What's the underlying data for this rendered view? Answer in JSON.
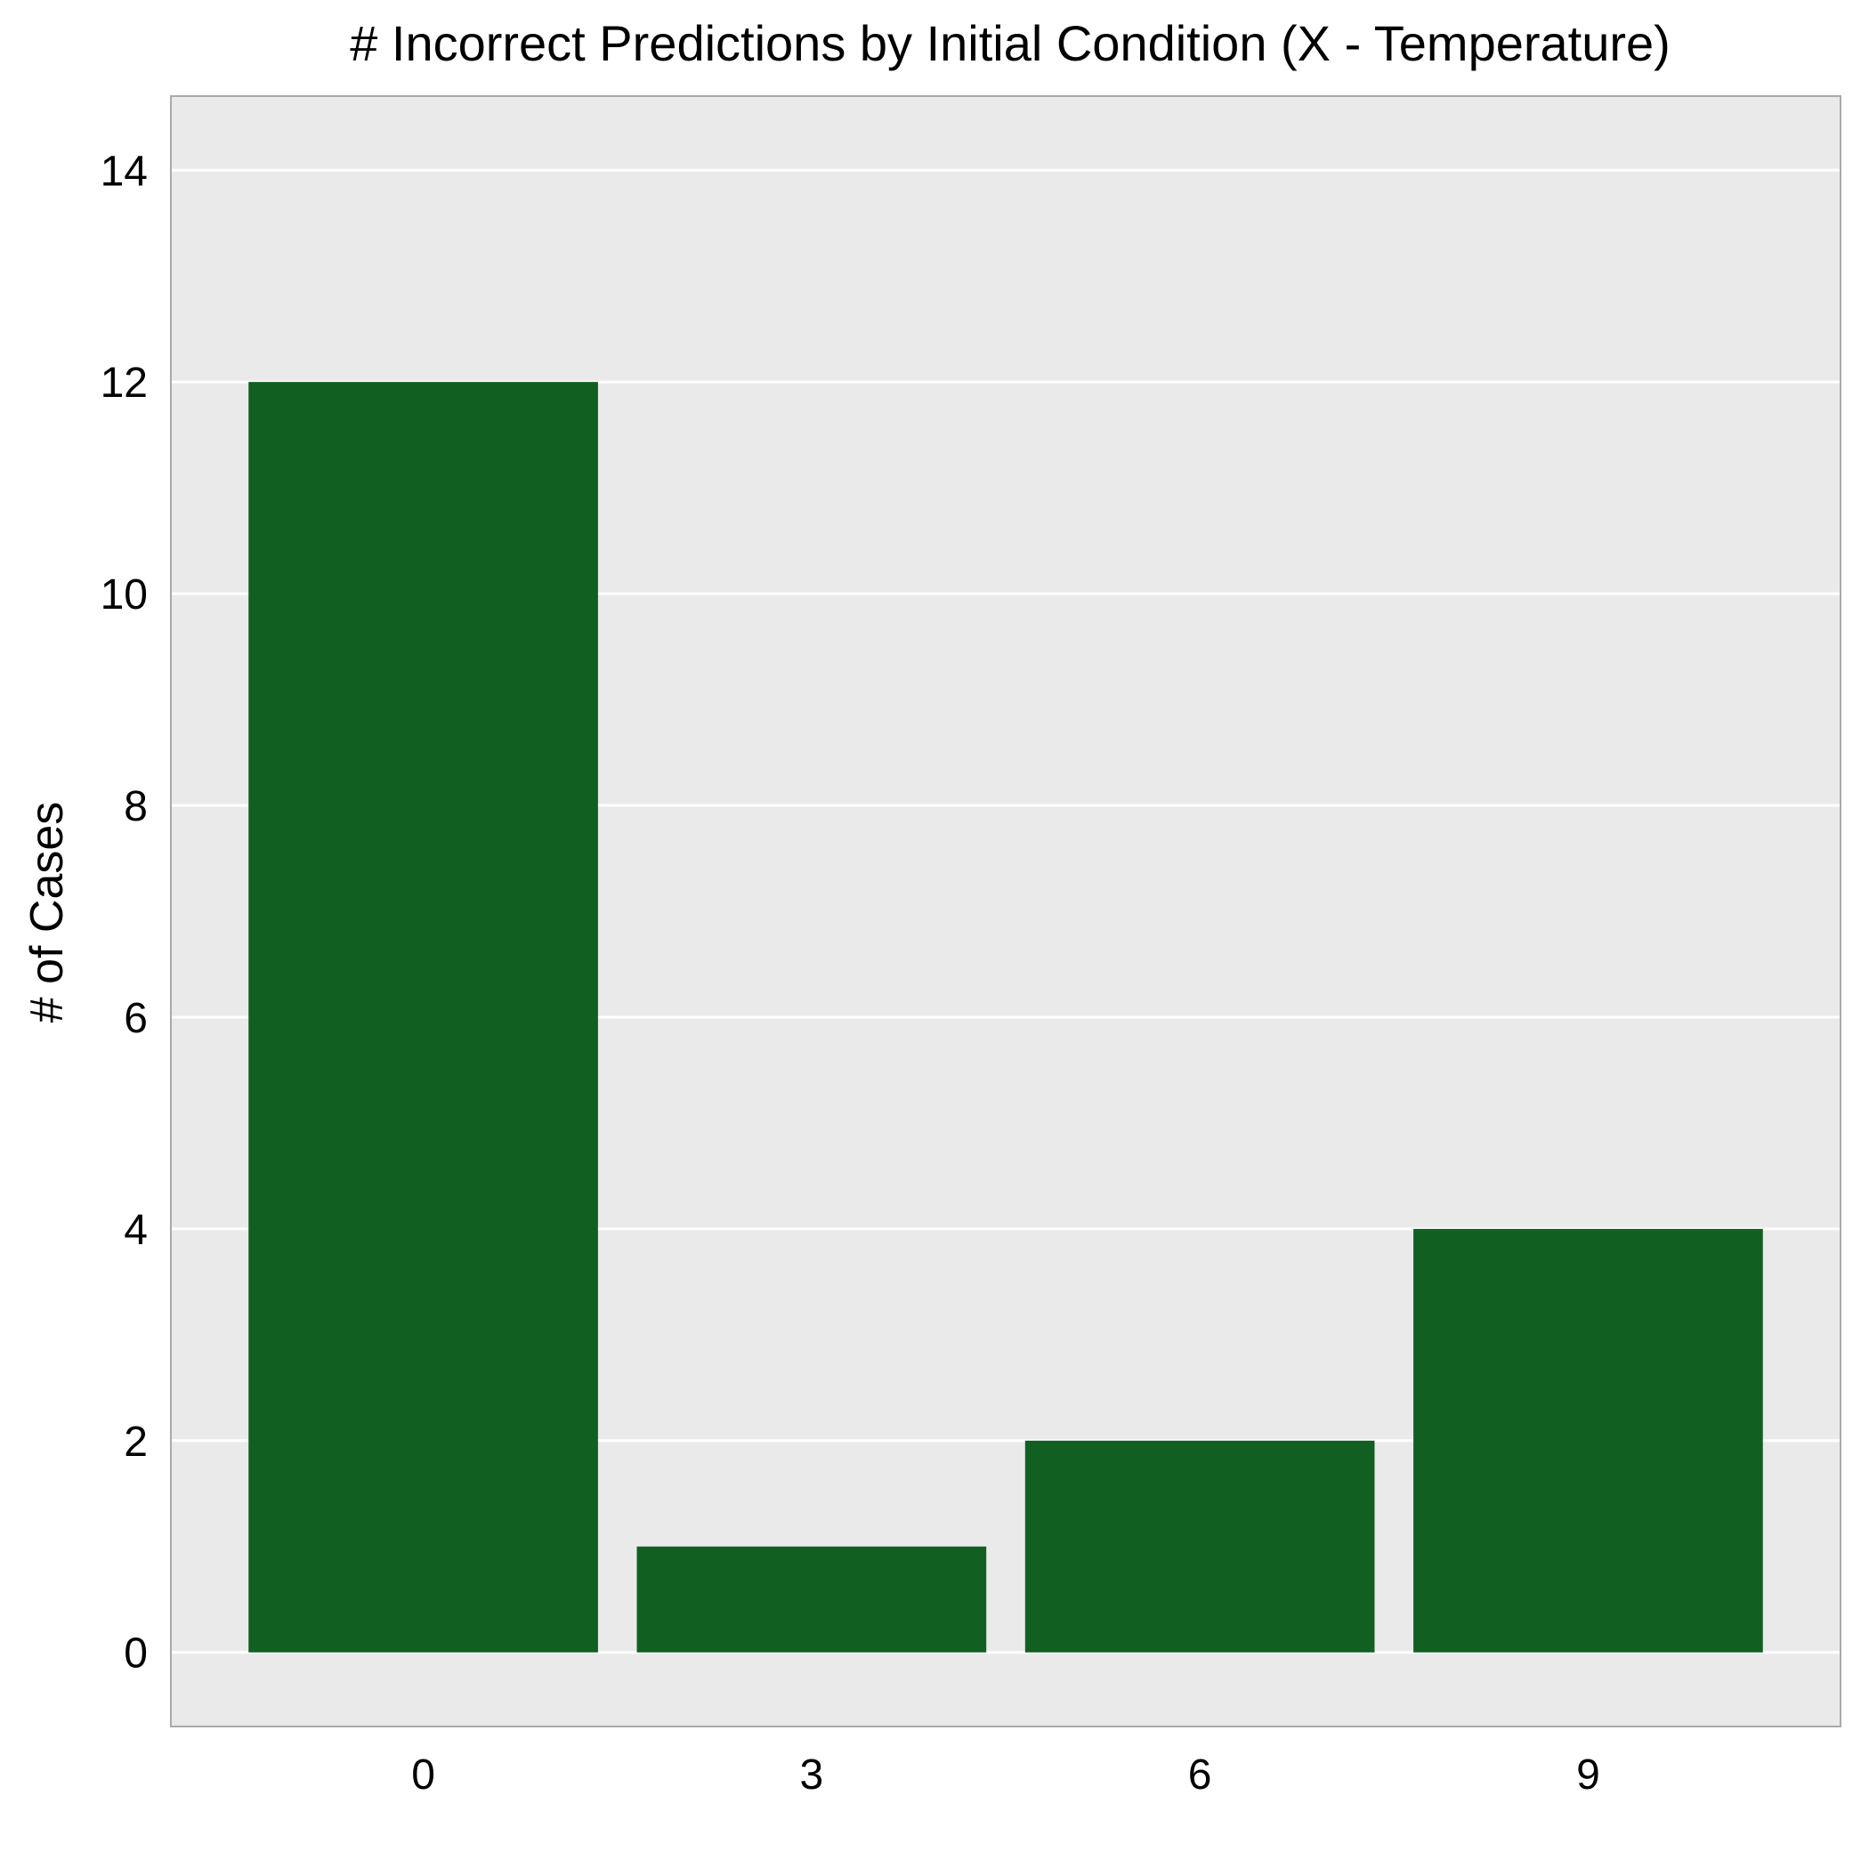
{
  "chart_data": {
    "type": "bar",
    "title": "# Incorrect Predictions by Initial Condition (X - Temperature)",
    "xlabel": "",
    "ylabel": "# of Cases",
    "categories": [
      "0",
      "3",
      "6",
      "9"
    ],
    "values": [
      12,
      1,
      2,
      4
    ],
    "ylim": [
      -0.7,
      14.7
    ],
    "yticks": [
      0,
      2,
      4,
      6,
      8,
      10,
      12,
      14
    ],
    "grid": "horizontal",
    "legend": "none",
    "colors": {
      "bar": "#116022",
      "plot_background": "#EAEAEA",
      "gridline": "#FFFFFF",
      "frame": "#AAAAAA"
    }
  }
}
